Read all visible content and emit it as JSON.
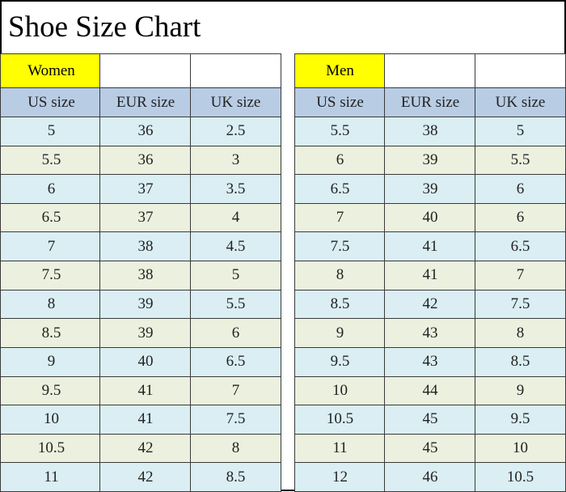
{
  "title": "Shoe Size Chart",
  "tables": [
    {
      "label": "Women",
      "headers": [
        "US size",
        "EUR size",
        "UK size"
      ],
      "rows": [
        [
          5,
          36,
          2.5
        ],
        [
          5.5,
          36,
          3
        ],
        [
          6,
          37,
          3.5
        ],
        [
          6.5,
          37,
          4
        ],
        [
          7,
          38,
          4.5
        ],
        [
          7.5,
          38,
          5
        ],
        [
          8,
          39,
          5.5
        ],
        [
          8.5,
          39,
          6
        ],
        [
          9,
          40,
          6.5
        ],
        [
          9.5,
          41,
          7
        ],
        [
          10,
          41,
          7.5
        ],
        [
          10.5,
          42,
          8
        ],
        [
          11,
          42,
          8.5
        ]
      ]
    },
    {
      "label": "Men",
      "headers": [
        "US size",
        "EUR size",
        "UK size"
      ],
      "rows": [
        [
          5.5,
          38,
          5
        ],
        [
          6,
          39,
          5.5
        ],
        [
          6.5,
          39,
          6
        ],
        [
          7,
          40,
          6
        ],
        [
          7.5,
          41,
          6.5
        ],
        [
          8,
          41,
          7
        ],
        [
          8.5,
          42,
          7.5
        ],
        [
          9,
          43,
          8
        ],
        [
          9.5,
          43,
          8.5
        ],
        [
          10,
          44,
          9
        ],
        [
          10.5,
          45,
          9.5
        ],
        [
          11,
          45,
          10
        ],
        [
          12,
          46,
          10.5
        ]
      ]
    }
  ]
}
